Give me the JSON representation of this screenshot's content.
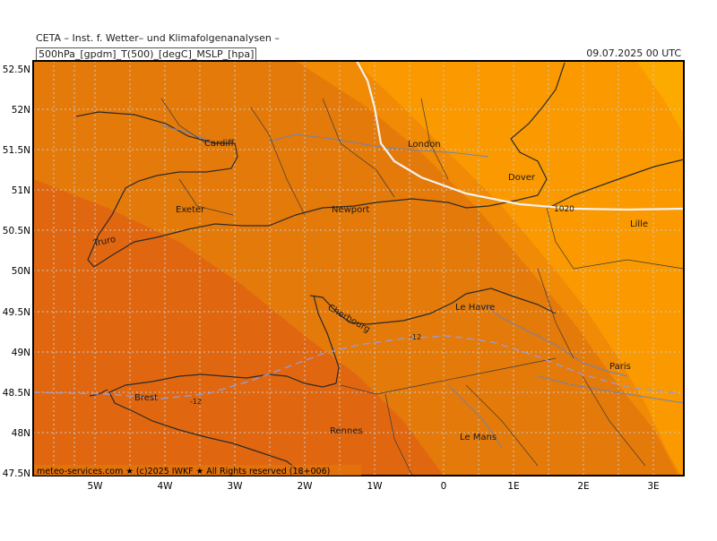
{
  "header": {
    "title": "CETA – Inst. f. Wetter– und Klimafolgenanalysen –",
    "parameters": "500hPa_[gpdm]_T(500)_[degC]_MSLP_[hpa]",
    "datetime": "09.07.2025 00 UTC"
  },
  "map": {
    "lat_labels": [
      "52.5N",
      "52N",
      "51.5N",
      "51N",
      "50.5N",
      "50N",
      "49.5N",
      "49N",
      "48.5N",
      "48N",
      "47.5N"
    ],
    "lon_labels": [
      "5W",
      "4W",
      "3W",
      "2W",
      "1W",
      "0",
      "1E",
      "2E",
      "3E"
    ],
    "cities": [
      {
        "id": "cardiff",
        "name": "Cardiff"
      },
      {
        "id": "london",
        "name": "London"
      },
      {
        "id": "dover",
        "name": "Dover"
      },
      {
        "id": "exeter",
        "name": "Exeter"
      },
      {
        "id": "newport",
        "name": "Newport"
      },
      {
        "id": "truro",
        "name": "Truro"
      },
      {
        "id": "lille",
        "name": "Lille"
      },
      {
        "id": "le-havre",
        "name": "Le Havre"
      },
      {
        "id": "cherbourg",
        "name": "Cherbourg"
      },
      {
        "id": "paris",
        "name": "Paris"
      },
      {
        "id": "brest",
        "name": "Brest"
      },
      {
        "id": "rennes",
        "name": "Rennes"
      },
      {
        "id": "le-mans",
        "name": "Le Mans"
      }
    ],
    "isobar_label": "1020",
    "temperature_labels": [
      "-12",
      "-12"
    ],
    "temperature_bands": [
      {
        "name": "coldest-band",
        "color": "#e06710"
      },
      {
        "name": "cold-band",
        "color": "#e47a0a"
      },
      {
        "name": "mid-band",
        "color": "#f18a05"
      },
      {
        "name": "warm-band",
        "color": "#fa9a00"
      },
      {
        "name": "warmest-band",
        "color": "#fcaa00"
      }
    ],
    "colors": {
      "land_border": "#2a2a2a",
      "river": "#6d84b3",
      "isobar": "#f2f2f2",
      "isotherm": "#9a9ad0",
      "grid": "#c8c8c8"
    },
    "footer": "meteo-services.com ★ (c)2025 IWKF ★ All Rights reserved (18+006)"
  }
}
